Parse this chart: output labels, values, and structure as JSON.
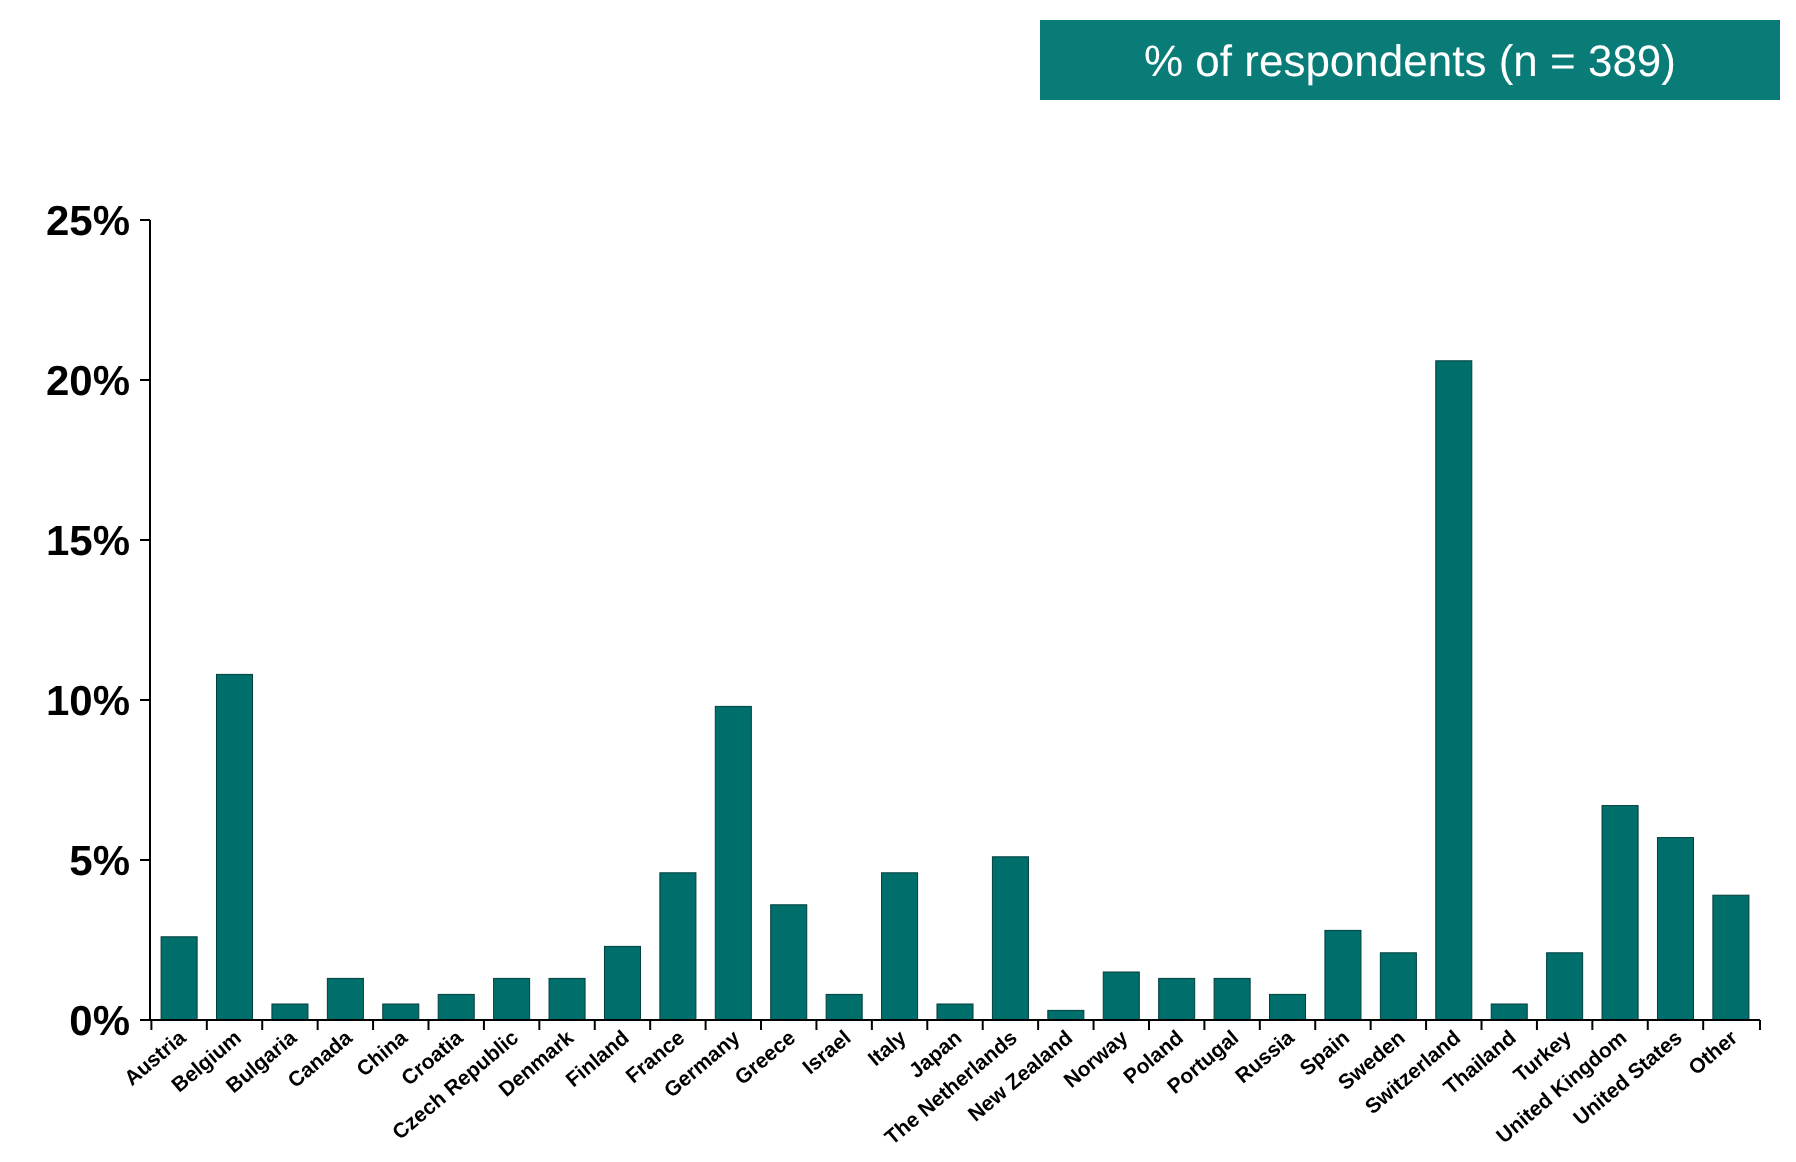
{
  "chart_data": {
    "type": "bar",
    "title": "% of respondents (n = 389)",
    "categories": [
      "Austria",
      "Belgium",
      "Bulgaria",
      "Canada",
      "China",
      "Croatia",
      "Czech Republic",
      "Denmark",
      "Finland",
      "France",
      "Germany",
      "Greece",
      "Israel",
      "Italy",
      "Japan",
      "The Netherlands",
      "New Zealand",
      "Norway",
      "Poland",
      "Portugal",
      "Russia",
      "Spain",
      "Sweden",
      "Switzerland",
      "Thailand",
      "Turkey",
      "United Kingdom",
      "United States",
      "Other"
    ],
    "values": [
      2.6,
      10.8,
      0.5,
      1.3,
      0.5,
      0.8,
      1.3,
      1.3,
      2.3,
      4.6,
      9.8,
      3.6,
      0.8,
      4.6,
      0.5,
      5.1,
      0.3,
      1.5,
      1.3,
      1.3,
      0.8,
      2.8,
      2.1,
      20.6,
      0.5,
      2.1,
      6.7,
      5.7,
      3.9
    ],
    "color": "#006f6b",
    "ylim": [
      0,
      25
    ],
    "yticks": [
      {
        "value": 0,
        "label": "0%"
      },
      {
        "value": 5,
        "label": "5%"
      },
      {
        "value": 10,
        "label": "10%"
      },
      {
        "value": 15,
        "label": "15%"
      },
      {
        "value": 20,
        "label": "20%"
      },
      {
        "value": 25,
        "label": "25%"
      }
    ],
    "grid": false
  }
}
